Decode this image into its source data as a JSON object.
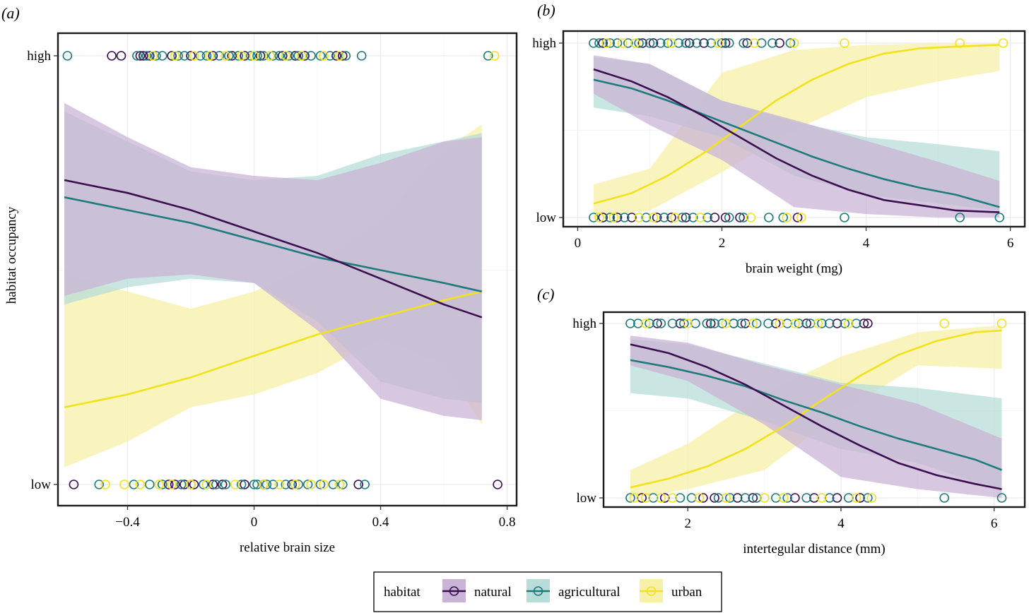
{
  "figure": {
    "legend": {
      "title": "habitat",
      "items": [
        {
          "key": "natural",
          "label": "natural"
        },
        {
          "key": "agricultural",
          "label": "agricultural"
        },
        {
          "key": "urban",
          "label": "urban"
        }
      ]
    },
    "colors": {
      "natural": "#3b0f4f",
      "agricultural": "#1e7b7c",
      "urban": "#f2e21b",
      "natural_band": "#c9b4d6",
      "agricultural_band": "#b8ddd8",
      "urban_band": "#f7f0a8",
      "grid": "#ebebeb"
    }
  },
  "chart_data": [
    {
      "id": "a",
      "panel_label": "(a)",
      "type": "scatter",
      "xlabel": "relative brain size",
      "ylabel": "habitat occupancy",
      "xlim": [
        -0.62,
        0.83
      ],
      "x_ticks": [
        -0.4,
        0,
        0.4,
        0.8
      ],
      "x_tick_labels": [
        "−0.4",
        "0",
        "0.4",
        "0.8"
      ],
      "y_tick_labels": [
        "low",
        "high"
      ],
      "curves": {
        "natural": {
          "x": [
            -0.6,
            -0.4,
            -0.2,
            0,
            0.2,
            0.4,
            0.6,
            0.72
          ],
          "y": [
            0.71,
            0.68,
            0.64,
            0.59,
            0.54,
            0.48,
            0.42,
            0.39
          ]
        },
        "agricultural": {
          "x": [
            -0.6,
            -0.4,
            -0.2,
            0,
            0.2,
            0.4,
            0.6,
            0.72
          ],
          "y": [
            0.67,
            0.64,
            0.61,
            0.57,
            0.53,
            0.5,
            0.47,
            0.45
          ]
        },
        "urban": {
          "x": [
            -0.6,
            -0.4,
            -0.2,
            0,
            0.2,
            0.4,
            0.6,
            0.72
          ],
          "y": [
            0.18,
            0.21,
            0.25,
            0.3,
            0.35,
            0.39,
            0.43,
            0.45
          ]
        }
      },
      "bands": {
        "natural": {
          "x": [
            -0.6,
            -0.4,
            -0.2,
            0,
            0.2,
            0.4,
            0.6,
            0.72
          ],
          "lower": [
            0.44,
            0.48,
            0.49,
            0.47,
            0.36,
            0.2,
            0.16,
            0.15
          ],
          "upper": [
            0.89,
            0.81,
            0.74,
            0.72,
            0.71,
            0.75,
            0.8,
            0.81
          ]
        },
        "agricultural": {
          "x": [
            -0.6,
            -0.4,
            -0.2,
            0,
            0.2,
            0.4,
            0.6,
            0.72
          ],
          "lower": [
            0.42,
            0.46,
            0.48,
            0.47,
            0.38,
            0.24,
            0.2,
            0.19
          ],
          "upper": [
            0.87,
            0.8,
            0.73,
            0.71,
            0.72,
            0.77,
            0.8,
            0.82
          ]
        },
        "urban": {
          "x": [
            -0.6,
            -0.4,
            -0.2,
            0,
            0.2,
            0.4,
            0.6,
            0.72
          ],
          "lower": [
            0.04,
            0.1,
            0.18,
            0.21,
            0.26,
            0.34,
            0.28,
            0.14
          ],
          "upper": [
            0.49,
            0.45,
            0.41,
            0.45,
            0.52,
            0.62,
            0.78,
            0.84
          ]
        }
      },
      "points_high": {
        "natural": [
          -0.45,
          -0.42,
          -0.36,
          -0.35,
          -0.33,
          -0.26,
          -0.2,
          -0.13,
          -0.07,
          -0.03,
          0.02,
          0.09,
          0.13,
          0.16,
          0.26,
          0.28
        ],
        "agricultural": [
          -0.59,
          -0.37,
          -0.34,
          -0.31,
          -0.29,
          -0.24,
          -0.22,
          -0.17,
          -0.15,
          -0.11,
          -0.08,
          -0.05,
          -0.01,
          0.01,
          0.03,
          0.06,
          0.08,
          0.11,
          0.14,
          0.18,
          0.21,
          0.24,
          0.29,
          0.34,
          0.74
        ],
        "urban": [
          -0.32,
          -0.25,
          -0.19,
          -0.14,
          -0.09,
          -0.04,
          0.0,
          0.05,
          0.1,
          0.15,
          0.22,
          0.27,
          0.76
        ]
      },
      "points_low": {
        "natural": [
          -0.57,
          -0.27,
          -0.25,
          -0.22,
          -0.19,
          -0.13,
          -0.1,
          -0.03,
          0.03,
          0.12,
          0.33,
          0.77
        ],
        "agricultural": [
          -0.49,
          -0.38,
          -0.33,
          -0.29,
          -0.23,
          -0.2,
          -0.16,
          -0.12,
          -0.09,
          -0.04,
          0.0,
          0.01,
          0.04,
          0.06,
          0.1,
          0.14,
          0.17,
          0.21,
          0.25,
          0.28,
          0.35
        ],
        "urban": [
          -0.47,
          -0.41,
          -0.36,
          -0.3,
          -0.26,
          -0.2,
          -0.15,
          -0.06,
          0.03,
          0.08,
          0.13,
          0.18,
          0.22,
          0.27
        ]
      }
    },
    {
      "id": "b",
      "panel_label": "(b)",
      "type": "scatter",
      "xlabel": "brain weight (mg)",
      "xlim": [
        -0.2,
        6.2
      ],
      "x_ticks": [
        0,
        2,
        4,
        6
      ],
      "x_tick_labels": [
        "0",
        "2",
        "4",
        "6"
      ],
      "y_tick_labels": [
        "low",
        "high"
      ],
      "curves": {
        "natural": {
          "x": [
            0.22,
            0.75,
            1.25,
            1.75,
            2.25,
            2.75,
            3.25,
            3.75,
            4.25,
            4.75,
            5.25,
            5.85
          ],
          "y": [
            0.85,
            0.78,
            0.69,
            0.58,
            0.46,
            0.34,
            0.24,
            0.16,
            0.1,
            0.07,
            0.04,
            0.03
          ]
        },
        "agricultural": {
          "x": [
            0.22,
            0.75,
            1.25,
            1.75,
            2.25,
            2.75,
            3.25,
            3.75,
            4.25,
            4.75,
            5.25,
            5.85
          ],
          "y": [
            0.79,
            0.74,
            0.67,
            0.59,
            0.51,
            0.43,
            0.35,
            0.28,
            0.22,
            0.17,
            0.13,
            0.06
          ]
        },
        "urban": {
          "x": [
            0.22,
            0.75,
            1.25,
            1.75,
            2.25,
            2.75,
            3.25,
            3.75,
            4.25,
            4.75,
            5.25,
            5.85
          ],
          "y": [
            0.08,
            0.14,
            0.24,
            0.37,
            0.52,
            0.67,
            0.79,
            0.88,
            0.94,
            0.97,
            0.98,
            0.99
          ]
        }
      },
      "bands": {
        "natural": {
          "x": [
            0.22,
            1.0,
            2.0,
            3.0,
            4.0,
            5.0,
            5.85
          ],
          "lower": [
            0.71,
            0.53,
            0.33,
            0.06,
            0.02,
            0.0,
            0.0
          ],
          "upper": [
            0.93,
            0.88,
            0.67,
            0.56,
            0.44,
            0.32,
            0.21
          ]
        },
        "agricultural": {
          "x": [
            0.22,
            1.0,
            2.0,
            3.0,
            4.0,
            5.0,
            5.85
          ],
          "lower": [
            0.63,
            0.58,
            0.46,
            0.24,
            0.13,
            0.08,
            0.04
          ],
          "upper": [
            0.92,
            0.88,
            0.67,
            0.55,
            0.46,
            0.42,
            0.38
          ]
        },
        "urban": {
          "x": [
            0.22,
            1.0,
            2.0,
            3.0,
            4.0,
            5.0,
            5.85
          ],
          "lower": [
            0.0,
            0.04,
            0.26,
            0.5,
            0.69,
            0.78,
            0.84
          ],
          "upper": [
            0.19,
            0.28,
            0.83,
            0.96,
            0.99,
            1.0,
            1.0
          ]
        }
      },
      "points_high": {
        "natural": [
          0.35,
          0.9,
          1.05,
          1.55,
          1.75,
          2.05,
          2.35,
          2.8
        ],
        "agricultural": [
          0.22,
          0.3,
          0.45,
          0.55,
          0.7,
          0.85,
          1.0,
          1.15,
          1.25,
          1.4,
          1.5,
          1.65,
          1.85,
          2.0,
          2.1,
          2.3,
          2.55,
          2.7,
          2.95
        ],
        "urban": [
          0.4,
          0.62,
          0.8,
          1.3,
          1.95,
          2.45,
          3.0,
          3.7,
          5.3,
          5.9
        ]
      },
      "points_low": {
        "natural": [
          0.35,
          0.55,
          0.75,
          1.1,
          1.3,
          1.5,
          1.9,
          2.05,
          2.25,
          3.05
        ],
        "agricultural": [
          0.22,
          0.45,
          0.65,
          0.95,
          1.2,
          1.45,
          1.6,
          1.8,
          2.1,
          2.3,
          2.65,
          2.85,
          3.7,
          5.3,
          5.85
        ],
        "urban": [
          0.3,
          0.5,
          0.85,
          1.05,
          1.35,
          1.7,
          2.4,
          2.9,
          3.1
        ]
      }
    },
    {
      "id": "c",
      "panel_label": "(c)",
      "type": "scatter",
      "xlabel": "intertegular distance (mm)",
      "xlim": [
        0.9,
        6.4
      ],
      "x_ticks": [
        2,
        4,
        6
      ],
      "x_tick_labels": [
        "2",
        "4",
        "6"
      ],
      "y_tick_labels": [
        "low",
        "high"
      ],
      "curves": {
        "natural": {
          "x": [
            1.25,
            1.75,
            2.25,
            2.75,
            3.25,
            3.75,
            4.25,
            4.75,
            5.25,
            5.75,
            6.1
          ],
          "y": [
            0.88,
            0.83,
            0.75,
            0.65,
            0.53,
            0.41,
            0.3,
            0.2,
            0.13,
            0.08,
            0.05
          ]
        },
        "agricultural": {
          "x": [
            1.25,
            1.75,
            2.25,
            2.75,
            3.25,
            3.75,
            4.25,
            4.75,
            5.25,
            5.75,
            6.1
          ],
          "y": [
            0.79,
            0.75,
            0.7,
            0.64,
            0.56,
            0.49,
            0.41,
            0.34,
            0.28,
            0.22,
            0.16
          ]
        },
        "urban": {
          "x": [
            1.25,
            1.75,
            2.25,
            2.75,
            3.25,
            3.75,
            4.25,
            4.75,
            5.25,
            5.75,
            6.1
          ],
          "y": [
            0.06,
            0.11,
            0.18,
            0.28,
            0.41,
            0.56,
            0.7,
            0.82,
            0.9,
            0.95,
            0.96
          ]
        }
      },
      "bands": {
        "natural": {
          "x": [
            1.25,
            2.0,
            3.0,
            4.0,
            5.0,
            6.1
          ],
          "lower": [
            0.76,
            0.67,
            0.42,
            0.12,
            0.05,
            0.0
          ],
          "upper": [
            0.93,
            0.89,
            0.76,
            0.65,
            0.54,
            0.34
          ]
        },
        "agricultural": {
          "x": [
            1.25,
            2.0,
            3.0,
            4.0,
            5.0,
            6.1
          ],
          "lower": [
            0.6,
            0.57,
            0.44,
            0.28,
            0.2,
            0.04
          ],
          "upper": [
            0.91,
            0.88,
            0.77,
            0.66,
            0.63,
            0.57
          ]
        },
        "urban": {
          "x": [
            1.25,
            2.0,
            3.0,
            4.0,
            5.0,
            6.1
          ],
          "lower": [
            0.0,
            0.05,
            0.16,
            0.49,
            0.76,
            0.74
          ],
          "upper": [
            0.16,
            0.31,
            0.6,
            0.81,
            0.95,
            0.99
          ]
        }
      },
      "points_high": {
        "natural": [
          1.6,
          1.9,
          2.3,
          2.6,
          2.75,
          3.15,
          3.55,
          3.95,
          4.3,
          4.35
        ],
        "agricultural": [
          1.25,
          1.35,
          1.5,
          1.65,
          1.8,
          1.95,
          2.1,
          2.25,
          2.35,
          2.45,
          2.6,
          2.7,
          2.9,
          3.05,
          3.3,
          3.45,
          3.6,
          3.75,
          3.85,
          4.05,
          4.2
        ],
        "urban": [
          1.45,
          2.0,
          2.5,
          2.85,
          3.2,
          3.4,
          3.7,
          4.1,
          5.35,
          6.1
        ]
      },
      "points_low": {
        "natural": [
          1.4,
          1.7,
          2.2,
          2.35,
          2.65,
          2.85,
          3.4,
          3.65,
          3.95,
          4.25
        ],
        "agricultural": [
          1.25,
          1.55,
          1.9,
          2.05,
          2.4,
          2.55,
          2.75,
          2.9,
          3.15,
          3.3,
          3.55,
          3.85,
          4.1,
          4.35,
          5.35,
          6.1
        ],
        "urban": [
          1.3,
          1.45,
          1.65,
          1.8,
          2.15,
          2.5,
          3.0,
          3.25,
          3.75,
          4.2,
          4.4
        ]
      }
    }
  ]
}
